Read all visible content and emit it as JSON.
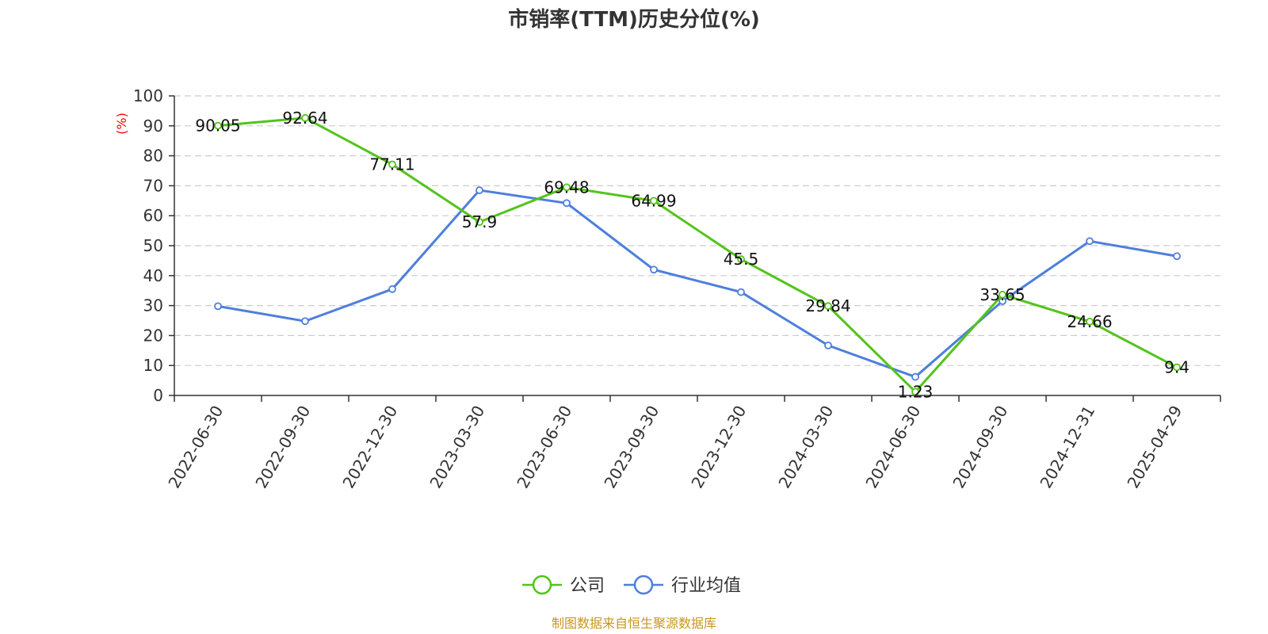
{
  "chart_data": {
    "type": "line",
    "title": "市销率(TTM)历史分位(%)",
    "ylabel": "(%)",
    "ylim": [
      0,
      100
    ],
    "yticks": [
      "0",
      "10",
      "20",
      "30",
      "40",
      "50",
      "60",
      "70",
      "80",
      "90",
      "100"
    ],
    "categories": [
      "2022-06-30",
      "2022-09-30",
      "2022-12-30",
      "2023-03-30",
      "2023-06-30",
      "2023-09-30",
      "2023-12-30",
      "2024-03-30",
      "2024-06-30",
      "2024-09-30",
      "2024-12-31",
      "2025-04-29"
    ],
    "series": [
      {
        "name": "公司",
        "color": "#52c41a",
        "values": [
          90.05,
          92.64,
          77.11,
          57.9,
          69.48,
          64.99,
          45.5,
          29.84,
          1.23,
          33.65,
          24.66,
          9.4
        ],
        "labels": [
          "90.05",
          "92.64",
          "77.11",
          "57.9",
          "69.48",
          "64.99",
          "45.5",
          "29.84",
          "1.23",
          "33.65",
          "24.66",
          "9.4"
        ]
      },
      {
        "name": "行业均值",
        "color": "#4e7fdc",
        "values": [
          29.8,
          24.8,
          35.5,
          68.5,
          64.2,
          42.0,
          34.5,
          16.7,
          6.2,
          31.5,
          51.5,
          46.5
        ]
      }
    ],
    "grid": true,
    "legend_position": "bottom-center",
    "ylabel_color": "#ff0000"
  },
  "footer": {
    "text": "制图数据来自恒生聚源数据库",
    "color": "#c8961e"
  }
}
